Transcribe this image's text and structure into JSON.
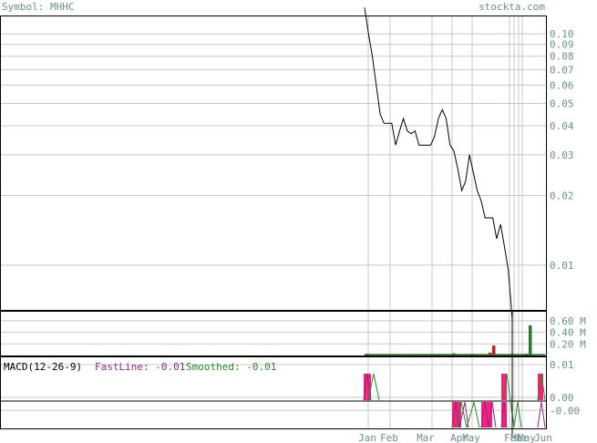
{
  "header": {
    "symbol_text": "Symbol: MHHC",
    "site_text": "stockta.com"
  },
  "macd": {
    "title": "MACD(12-26-9)",
    "fastline_text": "FastLine: -0.01",
    "smoothed_text": "Smoothed: -0.01"
  },
  "colors": {
    "text_gray": "#6b8e8e",
    "price_line": "#000000",
    "grid": "#c8c8c8",
    "volume_up": "#2a7a2a",
    "volume_down": "#cc1a1a",
    "macd_pink": "#ff1e78",
    "macd_fast": "#8b2a8b",
    "macd_smoothed": "#2a8a2a"
  },
  "chart_data": [
    {
      "type": "line",
      "panel": "price",
      "yscale": "log",
      "ylim": [
        0.0064,
        0.12
      ],
      "yticks": [
        "0.10",
        "0.09",
        "0.08",
        "0.07",
        "0.06",
        "0.05",
        "0.04",
        "0.03",
        "0.02",
        "0.01"
      ],
      "ytick_values": [
        0.1,
        0.09,
        0.08,
        0.07,
        0.06,
        0.05,
        0.04,
        0.03,
        0.02,
        0.01
      ],
      "x_labels": [
        "Jan",
        "Feb",
        "Mar",
        "Apr",
        "May",
        "Feb",
        "Mar",
        "May",
        "Jun"
      ],
      "series": [
        {
          "values": [
            0.13,
            0.1,
            0.08,
            0.06,
            0.045,
            0.041,
            0.041,
            0.041,
            0.033,
            0.038,
            0.043,
            0.038,
            0.037,
            0.038,
            0.033,
            0.033,
            0.033,
            0.033,
            0.036,
            0.043,
            0.047,
            0.043,
            0.033,
            0.031,
            0.026,
            0.021,
            0.023,
            0.03,
            0.025,
            0.021,
            0.019,
            0.016,
            0.016,
            0.016,
            0.013,
            0.015,
            0.012,
            0.0095,
            0.0045
          ]
        }
      ]
    },
    {
      "type": "bar",
      "panel": "volume",
      "yticks": [
        "0.60 M",
        "0.40 M",
        "0.20 M"
      ],
      "ytick_values": [
        0.6,
        0.4,
        0.2
      ],
      "ylim": [
        0,
        0.77
      ],
      "values_millions": [
        0.03,
        0.01,
        0.005,
        0.005,
        0.005,
        0.005,
        0.005,
        0.005,
        0.01,
        0.005,
        0.005,
        0.005,
        0.005,
        0.005,
        0.005,
        0.005,
        0.005,
        0.005,
        0.01,
        0.01,
        0.01,
        0.005,
        0.02,
        0.005,
        0.04,
        0.01,
        0.005,
        0.005,
        0.005,
        0.03,
        0.01,
        0.005,
        0.01,
        0.005,
        0.05,
        0.17,
        0.01,
        0.005,
        0.01,
        0.005,
        0.005,
        0.005,
        0.005,
        0.01,
        0.03,
        0.52
      ]
    },
    {
      "type": "line",
      "panel": "macd",
      "yticks": [
        "0.01",
        "0.00",
        "-0.00"
      ],
      "ytick_values": [
        0.01,
        0.0,
        -0.004
      ],
      "ylim": [
        -0.0095,
        0.0125
      ]
    }
  ]
}
